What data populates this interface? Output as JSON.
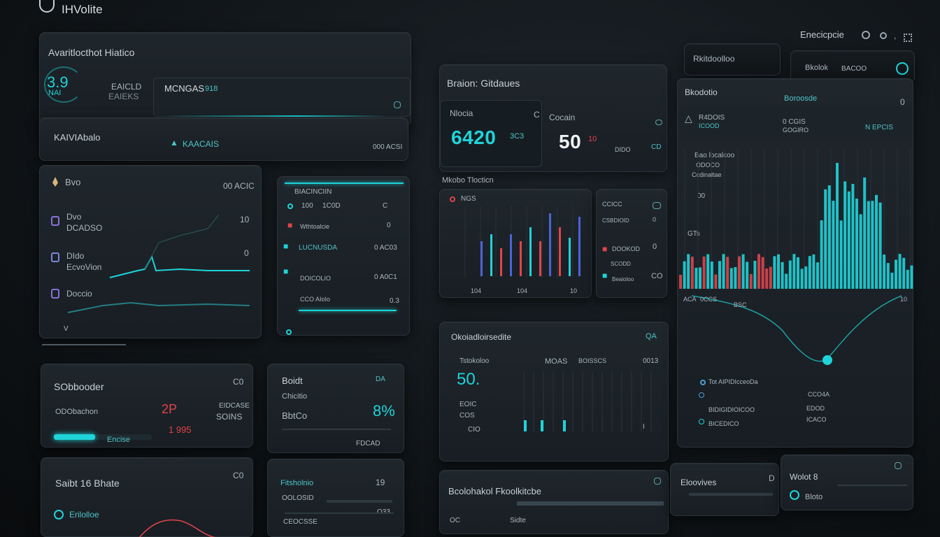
{
  "header": {
    "app_title": "IHVolite",
    "right_label": "Enecicpcie"
  },
  "left": {
    "top_panel": {
      "title": "Avaritlocthot Hiatico",
      "kpi_value": "3.9",
      "kpi_caption": "NAI",
      "label_a": "EAICLD",
      "label_b": "EAIEKS",
      "label_c": "MCNGAS",
      "label_c_value": "918"
    },
    "search_row": {
      "label": "KAIVIAbalo",
      "link": "KAACAIS",
      "right_value": "000 ACSI"
    },
    "list_panel": {
      "items": [
        {
          "icon": "pin-icon",
          "title": "Bvo",
          "sub": "",
          "value": "00 ACIC"
        },
        {
          "icon": "doc-icon",
          "title": "Dvo",
          "sub": "DCADSO",
          "value": "10"
        },
        {
          "icon": "doc-icon",
          "title": "DIdo",
          "sub": "EcvoVion",
          "value": "0"
        },
        {
          "icon": "doc-icon",
          "title": "Doccio",
          "sub": "",
          "value": ""
        }
      ],
      "footer": "V"
    },
    "mid_list": {
      "header": "BIACINCIIN",
      "header_values": [
        "100",
        "1C0D",
        "C"
      ],
      "rows": [
        {
          "label": "Wthtoalcie",
          "value": "0"
        },
        {
          "label": "LUCNUSDA",
          "value": "0 AC03"
        },
        {
          "label": "DOICOLIO",
          "value": "0 A0C1"
        },
        {
          "label": "CCO AIoIo",
          "value": "0.3"
        }
      ]
    },
    "score_card": {
      "title": "SObbooder",
      "corner": "C0",
      "row_label": "ODObachon",
      "gauge_label": "EIDCASE",
      "gauge_value": "SOINS",
      "stat": "1 995",
      "big": "2P",
      "progress": 0.42,
      "progress_caption": "Encise"
    },
    "budget_card": {
      "title": "Boidt",
      "corner": "DA",
      "label_a": "Chicitio",
      "label_b": "BbtCo",
      "percent": "8%",
      "footer": "FDCAD"
    },
    "bottom_a": {
      "title": "Saibt 16 Bhate",
      "corner": "C0",
      "row": "Erilolloe"
    },
    "bottom_b": {
      "title": "Fitsholnio",
      "corner": "19",
      "rows": [
        "OOLOSID",
        "CEOCSSE",
        "O33"
      ]
    }
  },
  "center": {
    "top_panel": {
      "title": "Braion: Gitdaues",
      "label_a": "Nlocia",
      "big_a": "6420",
      "big_a_unit": "3C3",
      "label_b": "Cocain",
      "big_b": "50",
      "big_b_unit": "10",
      "foot_a": "DIDO",
      "foot_b": "CD"
    },
    "section_label": "Mkobo Tlocticn",
    "chart_panel": {
      "title": "NGS",
      "x_labels": [
        "104",
        "104",
        "10"
      ]
    },
    "side_list": {
      "rows": [
        {
          "label": "CCICC",
          "value": ""
        },
        {
          "label": "CSBDIOID",
          "value": "0"
        },
        {
          "label": "DOOKOD",
          "value": ""
        },
        {
          "label": "SCODD",
          "value": "0"
        },
        {
          "label": "Beaioloo",
          "value": "CO"
        }
      ]
    },
    "bottom_panel": {
      "title": "Okoiadloirsedite",
      "corner": "QA",
      "big": "50.",
      "col_a": "Tstokoloo",
      "col_b": "MOAS",
      "col_c": "BOISSCS",
      "col_c_value": "0013",
      "rows": [
        "EOIC",
        "COS",
        "CIO",
        "I"
      ]
    },
    "footer_panel": {
      "title": "Bcolohakol Fkoolkitcbe",
      "left": "OC",
      "mid": "Sidte"
    }
  },
  "right": {
    "search": {
      "label": "Rkitdoolloo",
      "filter": "Bkolok",
      "filter_value": "BACOO"
    },
    "panel": {
      "title": "Bkodotio",
      "subtitle": "Boroosde",
      "corner": "0",
      "legend_a": "R4DOIS",
      "legend_a_sub": "ICOOD",
      "legend_b": "0 CGIS",
      "legend_b_sub": "GOGIRO",
      "legend_c": "N EPCIS",
      "y_labels": [
        "Bao localcoo",
        "ODOCO",
        "Ccdinaltae",
        "00",
        "GTs"
      ],
      "x_labels": [
        "ACA",
        "0CCS",
        "BSC",
        "10"
      ],
      "footer_rows": [
        {
          "left": "Tot AIPIDIcceoDa",
          "right": "CCO4A"
        },
        {
          "left": "BIDIGIDIOICOO",
          "right": "EDOD"
        },
        {
          "left": "BICEDICO",
          "right": "ICACO"
        }
      ]
    },
    "bottom_a": {
      "title": "Eloovives",
      "corner": "D"
    },
    "bottom_b": {
      "title": "Wolot 8",
      "row": "Bloto"
    }
  },
  "colors": {
    "cyan": "#1fd4d9",
    "red": "#e0444b",
    "purple": "#8a72d8",
    "blue": "#4a64d8"
  }
}
